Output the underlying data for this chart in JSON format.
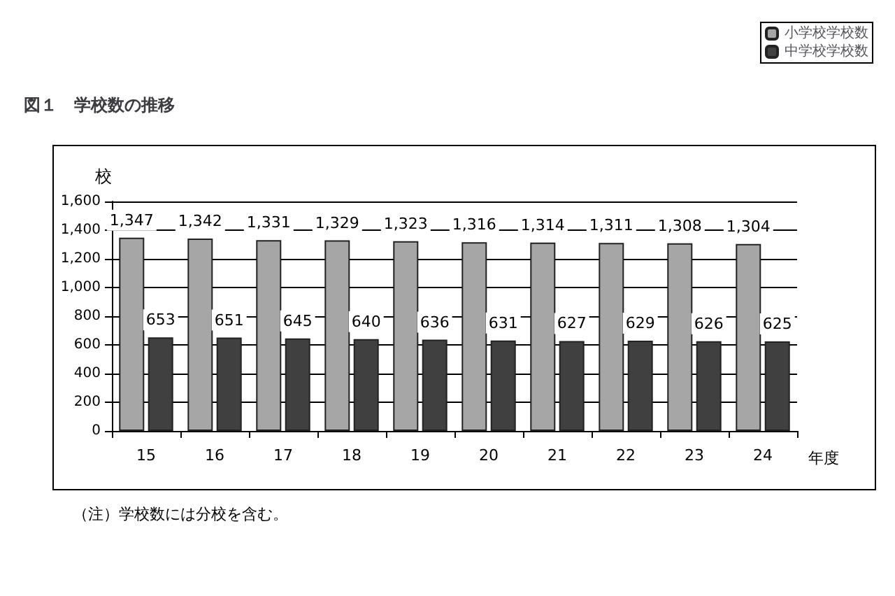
{
  "chart_data": {
    "type": "bar",
    "title": "図１　学校数の推移",
    "ylabel": "校",
    "xlabel": "年度",
    "annotations": [
      "（注）学校数には分校を含む。"
    ],
    "categories": [
      "15",
      "16",
      "17",
      "18",
      "19",
      "20",
      "21",
      "22",
      "23",
      "24"
    ],
    "series": [
      {
        "name": "小学校学校数",
        "color": "#a6a6a6",
        "values": [
          1347,
          1342,
          1331,
          1329,
          1323,
          1316,
          1314,
          1311,
          1308,
          1304
        ],
        "value_labels": [
          "1,347",
          "1,342",
          "1,331",
          "1,329",
          "1,323",
          "1,316",
          "1,314",
          "1,311",
          "1,308",
          "1,304"
        ]
      },
      {
        "name": "中学校学校数",
        "color": "#404040",
        "values": [
          653,
          651,
          645,
          640,
          636,
          631,
          627,
          629,
          626,
          625
        ],
        "value_labels": [
          "653",
          "651",
          "645",
          "640",
          "636",
          "631",
          "627",
          "629",
          "626",
          "625"
        ]
      }
    ],
    "ylim": [
      0,
      1600
    ],
    "yticks": [
      0,
      200,
      400,
      600,
      800,
      {
        "value": 1000,
        "label": "1,000"
      },
      {
        "value": 1200,
        "label": "1,200"
      },
      {
        "value": 1400,
        "label": "1,400"
      },
      {
        "value": 1600,
        "label": "1,600"
      }
    ],
    "grid": "y",
    "legend": "top right"
  }
}
